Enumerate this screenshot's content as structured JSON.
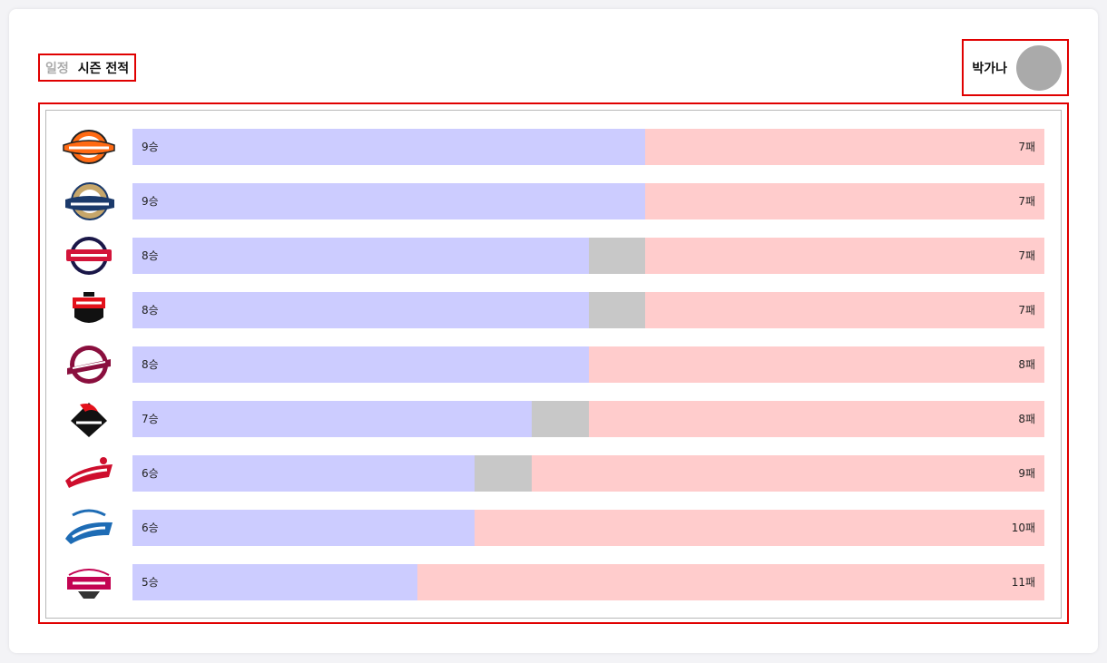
{
  "tabs": [
    {
      "label": "일정",
      "active": false
    },
    {
      "label": "시즌 전적",
      "active": true
    }
  ],
  "user": {
    "name": "박가나"
  },
  "colors": {
    "win": "#ccccff",
    "draw": "#c8c8c8",
    "loss": "#ffcccc"
  },
  "teams": [
    {
      "logo": "eagles-logo",
      "wins_label": "9승",
      "losses_label": "7패",
      "wins": 9,
      "draws": 0,
      "losses": 7
    },
    {
      "logo": "dinos-logo",
      "wins_label": "9승",
      "losses_label": "7패",
      "wins": 9,
      "draws": 0,
      "losses": 7
    },
    {
      "logo": "bears-logo",
      "wins_label": "8승",
      "losses_label": "7패",
      "wins": 8,
      "draws": 1,
      "losses": 7
    },
    {
      "logo": "tigers-logo",
      "wins_label": "8승",
      "losses_label": "7패",
      "wins": 8,
      "draws": 1,
      "losses": 7
    },
    {
      "logo": "kiwoom-logo",
      "wins_label": "8승",
      "losses_label": "8패",
      "wins": 8,
      "draws": 0,
      "losses": 8
    },
    {
      "logo": "ktwiz-logo",
      "wins_label": "7승",
      "losses_label": "8패",
      "wins": 7,
      "draws": 1,
      "losses": 8
    },
    {
      "logo": "landers-logo",
      "wins_label": "6승",
      "losses_label": "9패",
      "wins": 6,
      "draws": 1,
      "losses": 9
    },
    {
      "logo": "lions-logo",
      "wins_label": "6승",
      "losses_label": "10패",
      "wins": 6,
      "draws": 0,
      "losses": 10
    },
    {
      "logo": "twins-logo",
      "wins_label": "5승",
      "losses_label": "11패",
      "wins": 5,
      "draws": 0,
      "losses": 11
    }
  ]
}
